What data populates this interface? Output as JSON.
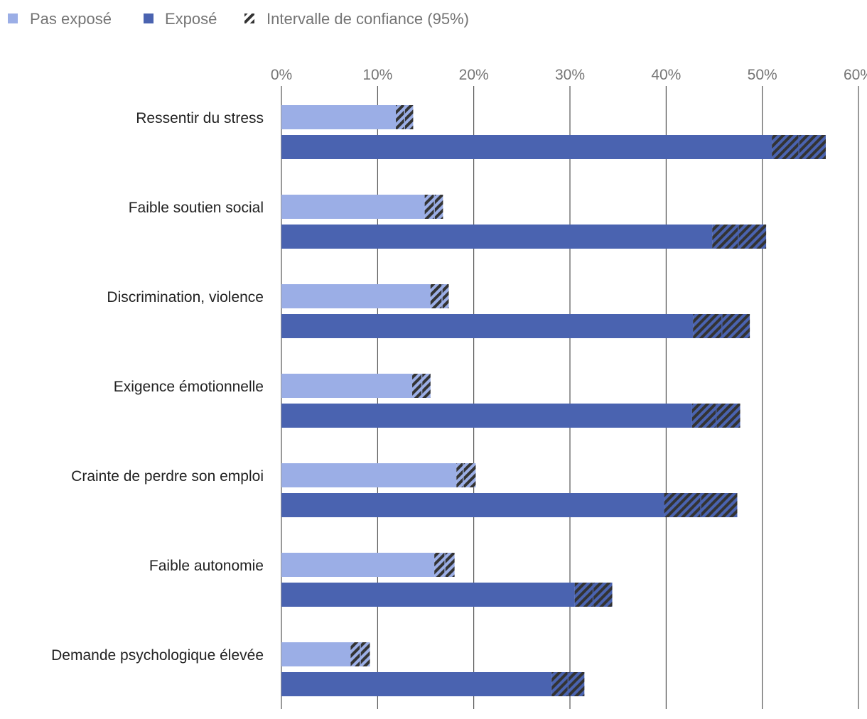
{
  "chart_data": {
    "type": "bar",
    "orientation": "horizontal",
    "title": "",
    "xlabel": "",
    "ylabel": "",
    "xlim": [
      0,
      60
    ],
    "ticks": [
      0,
      10,
      20,
      30,
      40,
      50,
      60
    ],
    "tick_labels": [
      "0%",
      "10%",
      "20%",
      "30%",
      "40%",
      "50%",
      "60%"
    ],
    "categories": [
      "Ressentir du stress",
      "Faible soutien social",
      "Discrimination, violence",
      "Exigence émotionnelle",
      "Crainte de perdre son emploi",
      "Faible autonomie",
      "Demande psychologique élevée"
    ],
    "series": [
      {
        "name": "Pas exposé",
        "color": "#9baee6",
        "values": [
          12.8,
          15.9,
          16.7,
          14.6,
          18.9,
          17.0,
          8.2
        ],
        "ci": [
          [
            11.9,
            13.7
          ],
          [
            14.9,
            16.8
          ],
          [
            15.5,
            17.4
          ],
          [
            13.6,
            15.5
          ],
          [
            18.2,
            20.2
          ],
          [
            15.9,
            18.0
          ],
          [
            7.2,
            9.2
          ]
        ]
      },
      {
        "name": "Exposé",
        "color": "#4a63b0",
        "values": [
          53.8,
          47.5,
          45.8,
          45.2,
          43.6,
          32.4,
          29.8
        ],
        "ci": [
          [
            51.0,
            56.6
          ],
          [
            44.8,
            50.4
          ],
          [
            42.8,
            48.7
          ],
          [
            42.7,
            47.7
          ],
          [
            39.8,
            47.4
          ],
          [
            30.5,
            34.4
          ],
          [
            28.1,
            31.5
          ]
        ]
      }
    ],
    "legend": {
      "position": "top-left",
      "items": [
        {
          "label": "Pas exposé",
          "color": "#9baee6",
          "icon": "square-icon"
        },
        {
          "label": "Exposé",
          "color": "#4a63b0",
          "icon": "square-icon"
        },
        {
          "label": "Intervalle de confiance (95%)",
          "color": "#333333",
          "icon": "hatch-icon"
        }
      ]
    },
    "grid": true
  }
}
